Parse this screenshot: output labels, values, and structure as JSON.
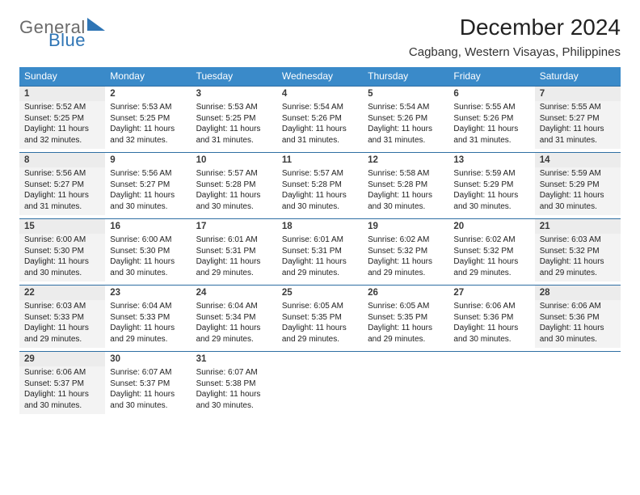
{
  "brand": {
    "word1": "General",
    "word2": "Blue"
  },
  "title": "December 2024",
  "location": "Cagbang, Western Visayas, Philippines",
  "colors": {
    "header_bg": "#3a8ac9",
    "header_text": "#ffffff",
    "row_border": "#2f6fa3",
    "shade_num": "#ececec",
    "shade_body": "#f3f3f3",
    "brand_gray": "#6b6b6b",
    "brand_blue": "#2f75b5",
    "page_bg": "#ffffff",
    "text": "#222222"
  },
  "typography": {
    "title_fontsize": 28,
    "location_fontsize": 15,
    "dayheader_fontsize": 12,
    "daynum_fontsize": 11.5,
    "cell_fontsize": 10,
    "logo_fontsize": 22
  },
  "day_headers": [
    "Sunday",
    "Monday",
    "Tuesday",
    "Wednesday",
    "Thursday",
    "Friday",
    "Saturday"
  ],
  "weeks": [
    [
      {
        "n": "1",
        "sr": "Sunrise: 5:52 AM",
        "ss": "Sunset: 5:25 PM",
        "d1": "Daylight: 11 hours",
        "d2": "and 32 minutes."
      },
      {
        "n": "2",
        "sr": "Sunrise: 5:53 AM",
        "ss": "Sunset: 5:25 PM",
        "d1": "Daylight: 11 hours",
        "d2": "and 32 minutes."
      },
      {
        "n": "3",
        "sr": "Sunrise: 5:53 AM",
        "ss": "Sunset: 5:25 PM",
        "d1": "Daylight: 11 hours",
        "d2": "and 31 minutes."
      },
      {
        "n": "4",
        "sr": "Sunrise: 5:54 AM",
        "ss": "Sunset: 5:26 PM",
        "d1": "Daylight: 11 hours",
        "d2": "and 31 minutes."
      },
      {
        "n": "5",
        "sr": "Sunrise: 5:54 AM",
        "ss": "Sunset: 5:26 PM",
        "d1": "Daylight: 11 hours",
        "d2": "and 31 minutes."
      },
      {
        "n": "6",
        "sr": "Sunrise: 5:55 AM",
        "ss": "Sunset: 5:26 PM",
        "d1": "Daylight: 11 hours",
        "d2": "and 31 minutes."
      },
      {
        "n": "7",
        "sr": "Sunrise: 5:55 AM",
        "ss": "Sunset: 5:27 PM",
        "d1": "Daylight: 11 hours",
        "d2": "and 31 minutes."
      }
    ],
    [
      {
        "n": "8",
        "sr": "Sunrise: 5:56 AM",
        "ss": "Sunset: 5:27 PM",
        "d1": "Daylight: 11 hours",
        "d2": "and 31 minutes."
      },
      {
        "n": "9",
        "sr": "Sunrise: 5:56 AM",
        "ss": "Sunset: 5:27 PM",
        "d1": "Daylight: 11 hours",
        "d2": "and 30 minutes."
      },
      {
        "n": "10",
        "sr": "Sunrise: 5:57 AM",
        "ss": "Sunset: 5:28 PM",
        "d1": "Daylight: 11 hours",
        "d2": "and 30 minutes."
      },
      {
        "n": "11",
        "sr": "Sunrise: 5:57 AM",
        "ss": "Sunset: 5:28 PM",
        "d1": "Daylight: 11 hours",
        "d2": "and 30 minutes."
      },
      {
        "n": "12",
        "sr": "Sunrise: 5:58 AM",
        "ss": "Sunset: 5:28 PM",
        "d1": "Daylight: 11 hours",
        "d2": "and 30 minutes."
      },
      {
        "n": "13",
        "sr": "Sunrise: 5:59 AM",
        "ss": "Sunset: 5:29 PM",
        "d1": "Daylight: 11 hours",
        "d2": "and 30 minutes."
      },
      {
        "n": "14",
        "sr": "Sunrise: 5:59 AM",
        "ss": "Sunset: 5:29 PM",
        "d1": "Daylight: 11 hours",
        "d2": "and 30 minutes."
      }
    ],
    [
      {
        "n": "15",
        "sr": "Sunrise: 6:00 AM",
        "ss": "Sunset: 5:30 PM",
        "d1": "Daylight: 11 hours",
        "d2": "and 30 minutes."
      },
      {
        "n": "16",
        "sr": "Sunrise: 6:00 AM",
        "ss": "Sunset: 5:30 PM",
        "d1": "Daylight: 11 hours",
        "d2": "and 30 minutes."
      },
      {
        "n": "17",
        "sr": "Sunrise: 6:01 AM",
        "ss": "Sunset: 5:31 PM",
        "d1": "Daylight: 11 hours",
        "d2": "and 29 minutes."
      },
      {
        "n": "18",
        "sr": "Sunrise: 6:01 AM",
        "ss": "Sunset: 5:31 PM",
        "d1": "Daylight: 11 hours",
        "d2": "and 29 minutes."
      },
      {
        "n": "19",
        "sr": "Sunrise: 6:02 AM",
        "ss": "Sunset: 5:32 PM",
        "d1": "Daylight: 11 hours",
        "d2": "and 29 minutes."
      },
      {
        "n": "20",
        "sr": "Sunrise: 6:02 AM",
        "ss": "Sunset: 5:32 PM",
        "d1": "Daylight: 11 hours",
        "d2": "and 29 minutes."
      },
      {
        "n": "21",
        "sr": "Sunrise: 6:03 AM",
        "ss": "Sunset: 5:32 PM",
        "d1": "Daylight: 11 hours",
        "d2": "and 29 minutes."
      }
    ],
    [
      {
        "n": "22",
        "sr": "Sunrise: 6:03 AM",
        "ss": "Sunset: 5:33 PM",
        "d1": "Daylight: 11 hours",
        "d2": "and 29 minutes."
      },
      {
        "n": "23",
        "sr": "Sunrise: 6:04 AM",
        "ss": "Sunset: 5:33 PM",
        "d1": "Daylight: 11 hours",
        "d2": "and 29 minutes."
      },
      {
        "n": "24",
        "sr": "Sunrise: 6:04 AM",
        "ss": "Sunset: 5:34 PM",
        "d1": "Daylight: 11 hours",
        "d2": "and 29 minutes."
      },
      {
        "n": "25",
        "sr": "Sunrise: 6:05 AM",
        "ss": "Sunset: 5:35 PM",
        "d1": "Daylight: 11 hours",
        "d2": "and 29 minutes."
      },
      {
        "n": "26",
        "sr": "Sunrise: 6:05 AM",
        "ss": "Sunset: 5:35 PM",
        "d1": "Daylight: 11 hours",
        "d2": "and 29 minutes."
      },
      {
        "n": "27",
        "sr": "Sunrise: 6:06 AM",
        "ss": "Sunset: 5:36 PM",
        "d1": "Daylight: 11 hours",
        "d2": "and 30 minutes."
      },
      {
        "n": "28",
        "sr": "Sunrise: 6:06 AM",
        "ss": "Sunset: 5:36 PM",
        "d1": "Daylight: 11 hours",
        "d2": "and 30 minutes."
      }
    ],
    [
      {
        "n": "29",
        "sr": "Sunrise: 6:06 AM",
        "ss": "Sunset: 5:37 PM",
        "d1": "Daylight: 11 hours",
        "d2": "and 30 minutes."
      },
      {
        "n": "30",
        "sr": "Sunrise: 6:07 AM",
        "ss": "Sunset: 5:37 PM",
        "d1": "Daylight: 11 hours",
        "d2": "and 30 minutes."
      },
      {
        "n": "31",
        "sr": "Sunrise: 6:07 AM",
        "ss": "Sunset: 5:38 PM",
        "d1": "Daylight: 11 hours",
        "d2": "and 30 minutes."
      },
      null,
      null,
      null,
      null
    ]
  ]
}
